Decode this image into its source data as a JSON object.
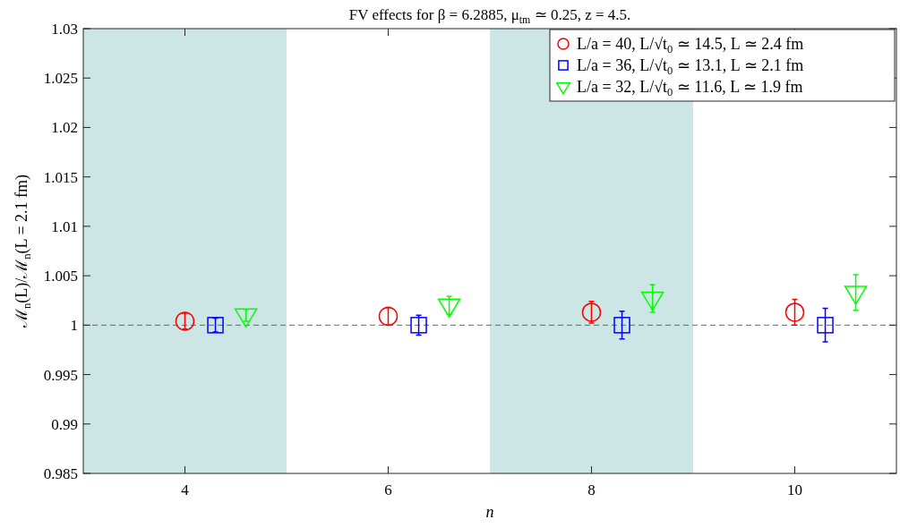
{
  "chart_data": {
    "type": "scatter",
    "title": "FV effects for β = 6.2885, μ$_{tm}$ ≃ 0.25, z = 4.5.",
    "xlabel": "n",
    "ylabel": "ℳ$_{n}$(L)/ℳ$_{n}$(L = 2.1 fm)",
    "xlim": [
      3,
      11
    ],
    "xticks": [
      4,
      6,
      8,
      10
    ],
    "ylim": [
      0.985,
      1.03
    ],
    "yticks": [
      0.985,
      0.99,
      0.995,
      1,
      1.005,
      1.01,
      1.015,
      1.02,
      1.025,
      1.03
    ],
    "grid": false,
    "legend": "top right",
    "series": [
      {
        "name": "L/a = 40, L/√t$_{0}$ ≃ 14.5, L ≃ 2.4 fm",
        "color": "#ff0000",
        "marker": "circle",
        "x": [
          4,
          6,
          8,
          10
        ],
        "values": [
          1.0004,
          1.0009,
          1.0013,
          1.0013
        ],
        "errors": [
          0.0008,
          0.0009,
          0.0011,
          0.0013
        ]
      },
      {
        "name": "L/a = 36, L/√t$_{0}$ ≃ 13.1, L ≃ 2.1 fm",
        "color": "#0000ff",
        "marker": "square",
        "x": [
          4.3,
          6.3,
          8.3,
          10.3
        ],
        "values": [
          1.0,
          1.0,
          1.0,
          1.0
        ],
        "errors": [
          0.0007,
          0.001,
          0.0014,
          0.0017
        ]
      },
      {
        "name": "L/a = 32, L/√t$_{0}$ ≃ 11.6, L ≃ 1.9 fm",
        "color": "#00ff00",
        "marker": "triangle",
        "x": [
          4.6,
          6.6,
          8.6,
          10.6
        ],
        "values": [
          1.001,
          1.002,
          1.0027,
          1.0033
        ],
        "errors": [
          0.0006,
          0.0009,
          0.0014,
          0.0018
        ]
      }
    ],
    "bands": [
      {
        "axis": "x",
        "from": 3,
        "to": 5,
        "color": "#cce5e5"
      },
      {
        "axis": "x",
        "from": 7,
        "to": 9,
        "color": "#cce5e5"
      }
    ],
    "ref_lines": [
      {
        "axis": "y",
        "value": 1,
        "color": "#666666",
        "line_style": "dashed"
      }
    ]
  }
}
